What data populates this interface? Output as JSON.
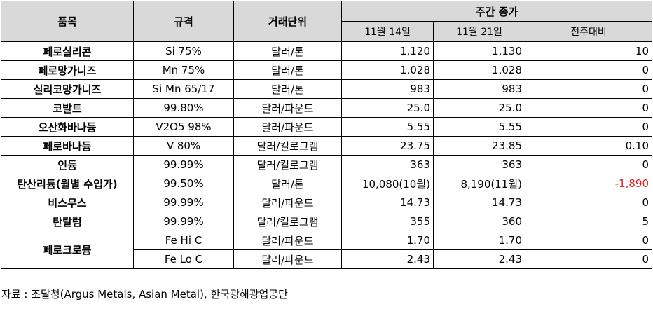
{
  "headers": {
    "item": "품목",
    "spec": "규격",
    "unit": "거래단위",
    "weekly_close": "주간 종가",
    "date1": "11월 14일",
    "date2": "11월 21일",
    "wow_change": "전주대비"
  },
  "rows": [
    {
      "name": "페로실리콘",
      "spec": "Si 75%",
      "unit": "달러/톤",
      "v1": "1,120",
      "v2": "1,130",
      "chg": "10"
    },
    {
      "name": "페로망가니즈",
      "spec": "Mn 75%",
      "unit": "달러/톤",
      "v1": "1,028",
      "v2": "1,028",
      "chg": "0"
    },
    {
      "name": "실리코망가니즈",
      "spec": "Si Mn 65/17",
      "unit": "달러/톤",
      "v1": "983",
      "v2": "983",
      "chg": "0"
    },
    {
      "name": "코발트",
      "spec": "99.80%",
      "unit": "달러/파운드",
      "v1": "25.0",
      "v2": "25.0",
      "chg": "0"
    },
    {
      "name": "오산화바나듐",
      "spec": "V2O5 98%",
      "unit": "달러/파운드",
      "v1": "5.55",
      "v2": "5.55",
      "chg": "0"
    },
    {
      "name": "페로바나듐",
      "spec": "V 80%",
      "unit": "달러/킬로그램",
      "v1": "23.75",
      "v2": "23.85",
      "chg": "0.10"
    },
    {
      "name": "인듐",
      "spec": "99.99%",
      "unit": "달러/킬로그램",
      "v1": "363",
      "v2": "363",
      "chg": "0"
    },
    {
      "name": "탄산리튬(월별 수입가)",
      "spec": "99.50%",
      "unit": "달러/톤",
      "v1": "10,080(10월)",
      "v2": "8,190(11월)",
      "chg": "-1,890"
    },
    {
      "name": "비스무스",
      "spec": "99.99%",
      "unit": "달러/파운드",
      "v1": "14.73",
      "v2": "14.73",
      "chg": "0"
    },
    {
      "name": "탄탈럼",
      "spec": "99.99%",
      "unit": "달러/킬로그램",
      "v1": "355",
      "v2": "360",
      "chg": "5"
    }
  ],
  "ferrochrome": {
    "name": "페로크로뮴",
    "sub": [
      {
        "spec": "Fe Hi C",
        "unit": "달러/파운드",
        "v1": "1.70",
        "v2": "1.70",
        "chg": "0"
      },
      {
        "spec": "Fe Lo C",
        "unit": "달러/파운드",
        "v1": "2.43",
        "v2": "2.43",
        "chg": "0"
      }
    ]
  },
  "source": "자료 : 조달청(Argus Metals, Asian Metal), 한국광해광업공단",
  "colors": {
    "header_bg": "#d9d9d9",
    "negative": "#e02020",
    "border": "#000000"
  }
}
